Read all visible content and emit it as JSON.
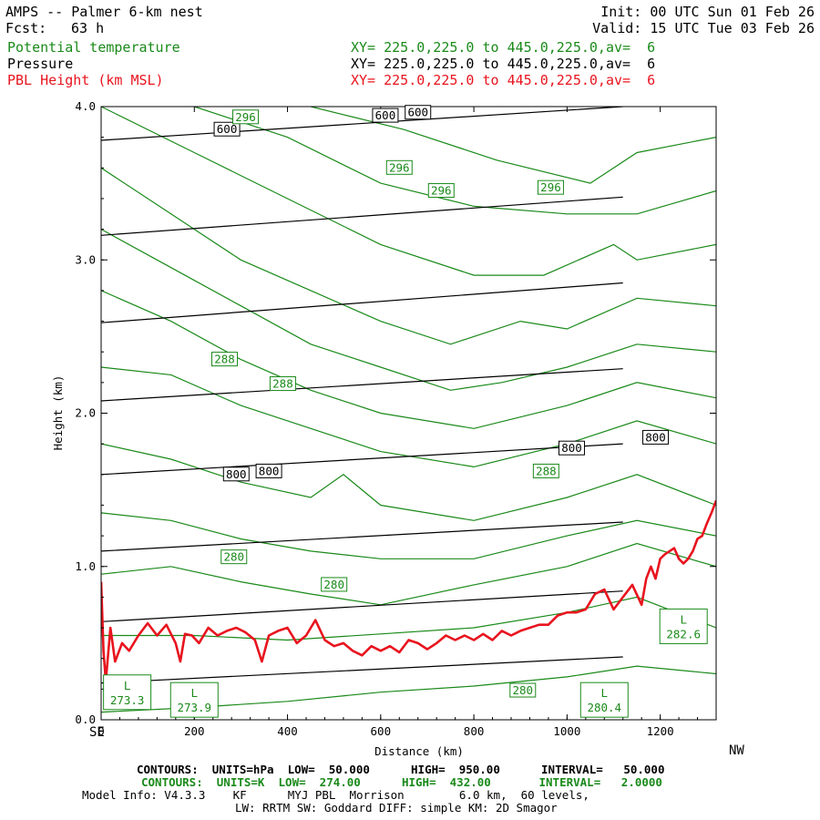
{
  "header": {
    "title": "AMPS -- Palmer 6-km nest",
    "fcst_label": "Fcst:",
    "fcst_value": "63 h",
    "init": "Init: 00 UTC Sun 01 Feb 26",
    "valid": "Valid: 15 UTC Tue 03 Feb 26"
  },
  "legend": [
    {
      "name": "Potential temperature",
      "xy": "XY= 225.0,225.0 to 445.0,225.0,av=  6",
      "color": "#1a8a1a"
    },
    {
      "name": "Pressure",
      "xy": "XY= 225.0,225.0 to 445.0,225.0,av=  6",
      "color": "#000000"
    },
    {
      "name": "PBL Height (km MSL)",
      "xy": "XY= 225.0,225.0 to 445.0,225.0,av=  6",
      "color": "#e8141e"
    }
  ],
  "chart_data": {
    "type": "line",
    "title": "AMPS -- Palmer 6-km nest",
    "xlabel": "Distance (km)",
    "ylabel": "Height (km)",
    "xlim": [
      0,
      1320
    ],
    "ylim": [
      0,
      4.0
    ],
    "x_ticks": [
      "0",
      "200",
      "400",
      "600",
      "800",
      "1000",
      "1200"
    ],
    "y_ticks": [
      "0.0",
      "1.0",
      "2.0",
      "3.0",
      "4.0"
    ],
    "x_left_label": "SE",
    "x_right_label": "NW",
    "pressure_contour_labels": [
      "600",
      "600",
      "600",
      "800",
      "800",
      "800",
      "800"
    ],
    "theta_contour_labels": [
      "296",
      "296",
      "296",
      "296",
      "288",
      "288",
      "288",
      "280",
      "280",
      "280"
    ],
    "low_labels": [
      {
        "letter": "L",
        "value": "273.3"
      },
      {
        "letter": "L",
        "value": "273.9"
      },
      {
        "letter": "L",
        "value": "280.4"
      },
      {
        "letter": "L",
        "value": "282.6"
      }
    ],
    "series": [
      {
        "name": "PBL Height (km MSL)",
        "color": "#e8141e",
        "x": [
          0,
          5,
          10,
          20,
          30,
          45,
          60,
          80,
          100,
          120,
          140,
          160,
          170,
          180,
          195,
          210,
          230,
          250,
          270,
          290,
          310,
          330,
          345,
          360,
          380,
          400,
          420,
          440,
          460,
          480,
          500,
          520,
          540,
          560,
          580,
          600,
          620,
          640,
          660,
          680,
          700,
          720,
          740,
          760,
          780,
          800,
          820,
          840,
          860,
          880,
          900,
          920,
          940,
          960,
          980,
          1000,
          1020,
          1040,
          1060,
          1080,
          1100,
          1120,
          1140,
          1160,
          1170,
          1180,
          1190,
          1200,
          1210,
          1220,
          1230,
          1240,
          1250,
          1260,
          1270,
          1280,
          1290,
          1300,
          1310,
          1320
        ],
        "y": [
          0.9,
          0.45,
          0.25,
          0.6,
          0.38,
          0.5,
          0.45,
          0.55,
          0.63,
          0.55,
          0.62,
          0.5,
          0.38,
          0.56,
          0.55,
          0.5,
          0.6,
          0.55,
          0.58,
          0.6,
          0.57,
          0.52,
          0.38,
          0.55,
          0.58,
          0.6,
          0.5,
          0.55,
          0.65,
          0.52,
          0.48,
          0.5,
          0.45,
          0.42,
          0.48,
          0.45,
          0.48,
          0.44,
          0.52,
          0.5,
          0.46,
          0.5,
          0.55,
          0.52,
          0.55,
          0.52,
          0.56,
          0.52,
          0.58,
          0.55,
          0.58,
          0.6,
          0.62,
          0.62,
          0.68,
          0.7,
          0.7,
          0.72,
          0.82,
          0.85,
          0.72,
          0.8,
          0.88,
          0.75,
          0.92,
          1.0,
          0.92,
          1.05,
          1.08,
          1.1,
          1.12,
          1.05,
          1.02,
          1.05,
          1.1,
          1.18,
          1.2,
          1.28,
          1.35,
          1.43
        ]
      },
      {
        "name": "Pressure isobars (hPa)",
        "color": "#000000",
        "lines": [
          {
            "x": [
              0,
              1120
            ],
            "y": [
              0.24,
              0.41
            ]
          },
          {
            "x": [
              0,
              1120
            ],
            "y": [
              0.64,
              0.84
            ]
          },
          {
            "x": [
              0,
              1120
            ],
            "y": [
              1.1,
              1.29
            ]
          },
          {
            "x": [
              0,
              1120
            ],
            "y": [
              1.6,
              1.8
            ]
          },
          {
            "x": [
              0,
              1120
            ],
            "y": [
              2.08,
              2.29
            ]
          },
          {
            "x": [
              0,
              1120
            ],
            "y": [
              2.59,
              2.85
            ]
          },
          {
            "x": [
              0,
              1120
            ],
            "y": [
              3.16,
              3.41
            ]
          },
          {
            "x": [
              0,
              1120
            ],
            "y": [
              3.78,
              4.0
            ]
          }
        ]
      },
      {
        "name": "Potential temperature isentropes (K)",
        "color": "#1a8a1a",
        "lines": [
          {
            "x": [
              0,
              200,
              400,
              600,
              800,
              1000,
              1150,
              1320
            ],
            "y": [
              0.05,
              0.08,
              0.12,
              0.18,
              0.22,
              0.28,
              0.35,
              0.3
            ]
          },
          {
            "x": [
              0,
              200,
              400,
              600,
              800,
              1000,
              1150,
              1320
            ],
            "y": [
              0.55,
              0.55,
              0.52,
              0.56,
              0.6,
              0.7,
              0.8,
              0.6
            ]
          },
          {
            "x": [
              0,
              150,
              300,
              450,
              600,
              800,
              1000,
              1150,
              1320
            ],
            "y": [
              0.95,
              1.0,
              0.9,
              0.82,
              0.75,
              0.88,
              1.0,
              1.15,
              1.0
            ]
          },
          {
            "x": [
              0,
              150,
              300,
              450,
              600,
              800,
              1000,
              1150,
              1320
            ],
            "y": [
              1.35,
              1.3,
              1.18,
              1.1,
              1.05,
              1.05,
              1.2,
              1.3,
              1.2
            ]
          },
          {
            "x": [
              0,
              150,
              300,
              450,
              520,
              600,
              800,
              1000,
              1150,
              1320
            ],
            "y": [
              1.8,
              1.7,
              1.55,
              1.45,
              1.6,
              1.4,
              1.3,
              1.45,
              1.6,
              1.4
            ]
          },
          {
            "x": [
              0,
              150,
              300,
              450,
              600,
              800,
              1000,
              1150,
              1320
            ],
            "y": [
              2.3,
              2.25,
              2.05,
              1.9,
              1.75,
              1.65,
              1.8,
              1.95,
              1.8
            ]
          },
          {
            "x": [
              0,
              150,
              300,
              450,
              600,
              800,
              1000,
              1150,
              1320
            ],
            "y": [
              2.8,
              2.6,
              2.35,
              2.15,
              2.0,
              1.9,
              2.05,
              2.2,
              2.1
            ]
          },
          {
            "x": [
              0,
              150,
              300,
              450,
              600,
              750,
              860,
              1000,
              1150,
              1320
            ],
            "y": [
              3.2,
              2.95,
              2.7,
              2.45,
              2.3,
              2.15,
              2.2,
              2.3,
              2.45,
              2.4
            ]
          },
          {
            "x": [
              0,
              150,
              300,
              450,
              600,
              750,
              900,
              1000,
              1150,
              1320
            ],
            "y": [
              3.6,
              3.3,
              3.0,
              2.8,
              2.6,
              2.45,
              2.6,
              2.55,
              2.75,
              2.7
            ]
          },
          {
            "x": [
              0,
              200,
              400,
              600,
              800,
              950,
              1100,
              1150,
              1320
            ],
            "y": [
              4.0,
              3.7,
              3.4,
              3.1,
              2.9,
              2.9,
              3.1,
              3.0,
              3.1
            ]
          },
          {
            "x": [
              200,
              400,
              600,
              800,
              1000,
              1150,
              1320
            ],
            "y": [
              4.0,
              3.8,
              3.5,
              3.35,
              3.3,
              3.3,
              3.45
            ]
          },
          {
            "x": [
              450,
              650,
              850,
              1050,
              1150,
              1320
            ],
            "y": [
              4.0,
              3.85,
              3.65,
              3.5,
              3.7,
              3.8
            ]
          }
        ]
      }
    ]
  },
  "footer": {
    "pressure_contours": "CONTOURS:  UNITS=hPa  LOW=  50.000      HIGH=  950.00      INTERVAL=   50.000",
    "theta_contours": "CONTOURS:  UNITS=K  LOW=  274.00      HIGH=  432.00       INTERVAL=   2.0000",
    "model_info": "Model Info: V4.3.3    KF      MYJ PBL  Morrison        6.0 km,  60 levels,",
    "physics": "LW: RRTM SW: Goddard DIFF: simple KM: 2D Smagor"
  }
}
